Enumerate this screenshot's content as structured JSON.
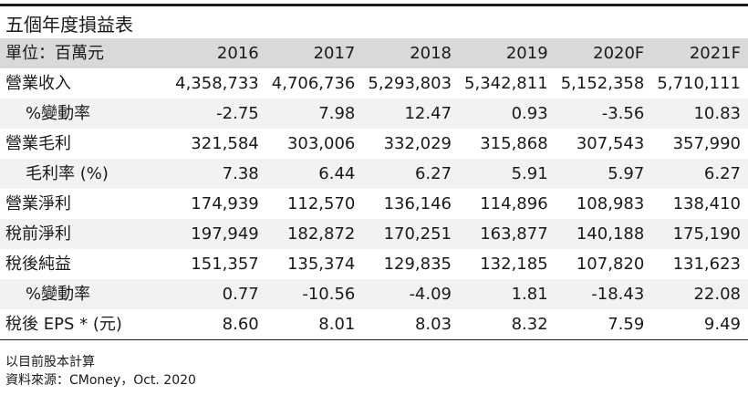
{
  "title": "五個年度損益表",
  "header": {
    "unit_label": "單位：百萬元",
    "years": [
      "2016",
      "2017",
      "2018",
      "2019",
      "2020F",
      "2021F"
    ]
  },
  "rows": [
    {
      "label": "營業收入",
      "values": [
        "4,358,733",
        "4,706,736",
        "5,293,803",
        "5,342,811",
        "5,152,358",
        "5,710,111"
      ]
    },
    {
      "label": "%變動率",
      "values": [
        "-2.75",
        "7.98",
        "12.47",
        "0.93",
        "-3.56",
        "10.83"
      ]
    },
    {
      "label": "營業毛利",
      "values": [
        "321,584",
        "303,006",
        "332,029",
        "315,868",
        "307,543",
        "357,990"
      ]
    },
    {
      "label": "毛利率 (%)",
      "values": [
        "7.38",
        "6.44",
        "6.27",
        "5.91",
        "5.97",
        "6.27"
      ]
    },
    {
      "label": "營業淨利",
      "values": [
        "174,939",
        "112,570",
        "136,146",
        "114,896",
        "108,983",
        "138,410"
      ]
    },
    {
      "label": "稅前淨利",
      "values": [
        "197,949",
        "182,872",
        "170,251",
        "163,877",
        "140,188",
        "175,190"
      ]
    },
    {
      "label": "稅後純益",
      "values": [
        "151,357",
        "135,374",
        "129,835",
        "132,185",
        "107,820",
        "131,623"
      ]
    },
    {
      "label": "%變動率",
      "values": [
        "0.77",
        "-10.56",
        "-4.09",
        "1.81",
        "-18.43",
        "22.08"
      ]
    },
    {
      "label": "稅後 EPS * (元)",
      "values": [
        "8.60",
        "8.01",
        "8.03",
        "8.32",
        "7.59",
        "9.49"
      ]
    }
  ],
  "notes": {
    "line1": "以目前股本計算",
    "line2": "資料來源：CMoney，Oct. 2020"
  }
}
